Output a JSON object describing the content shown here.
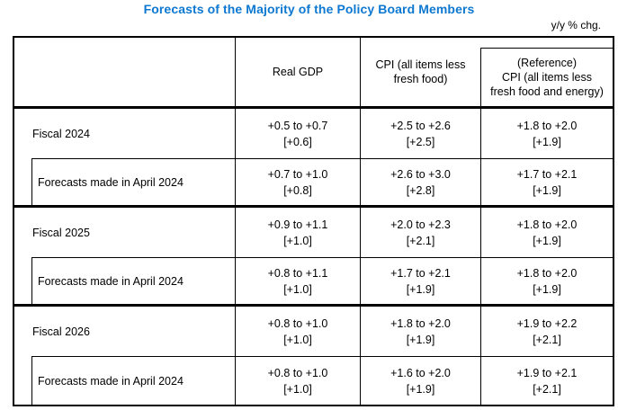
{
  "title": "Forecasts of the Majority of the Policy Board Members",
  "unit_note": "y/y % chg.",
  "colors": {
    "title_blue": "#0d78d1",
    "border": "#000000",
    "text": "#000000"
  },
  "table": {
    "header": {
      "real_gdp": "Real GDP",
      "cpi": "CPI (all items less\nfresh food)",
      "reference": "(Reference)\nCPI (all items less\nfresh food and energy)"
    },
    "rows": [
      {
        "label": "Fiscal 2024",
        "type": "main",
        "gdp": {
          "range": "+0.5 to +0.7",
          "median": "[+0.6]"
        },
        "cpi": {
          "range": "+2.5 to +2.6",
          "median": "[+2.5]"
        },
        "ref": {
          "range": "+1.8 to +2.0",
          "median": "[+1.9]"
        }
      },
      {
        "label": "Forecasts made in April 2024",
        "type": "sub",
        "gdp": {
          "range": "+0.7 to +1.0",
          "median": "[+0.8]"
        },
        "cpi": {
          "range": "+2.6 to +3.0",
          "median": "[+2.8]"
        },
        "ref": {
          "range": "+1.7 to +2.1",
          "median": "[+1.9]"
        }
      },
      {
        "label": "Fiscal 2025",
        "type": "main",
        "gdp": {
          "range": "+0.9 to +1.1",
          "median": "[+1.0]"
        },
        "cpi": {
          "range": "+2.0 to +2.3",
          "median": "[+2.1]"
        },
        "ref": {
          "range": "+1.8 to +2.0",
          "median": "[+1.9]"
        }
      },
      {
        "label": "Forecasts made in April 2024",
        "type": "sub",
        "gdp": {
          "range": "+0.8 to +1.1",
          "median": "[+1.0]"
        },
        "cpi": {
          "range": "+1.7 to +2.1",
          "median": "[+1.9]"
        },
        "ref": {
          "range": "+1.8 to +2.0",
          "median": "[+1.9]"
        }
      },
      {
        "label": "Fiscal 2026",
        "type": "main",
        "gdp": {
          "range": "+0.8 to +1.0",
          "median": "[+1.0]"
        },
        "cpi": {
          "range": "+1.8 to +2.0",
          "median": "[+1.9]"
        },
        "ref": {
          "range": "+1.9 to +2.2",
          "median": "[+2.1]"
        }
      },
      {
        "label": "Forecasts made in April 2024",
        "type": "sub",
        "gdp": {
          "range": "+0.8 to +1.0",
          "median": "[+1.0]"
        },
        "cpi": {
          "range": "+1.6 to +2.0",
          "median": "[+1.9]"
        },
        "ref": {
          "range": "+1.9 to +2.1",
          "median": "[+2.1]"
        }
      }
    ]
  }
}
